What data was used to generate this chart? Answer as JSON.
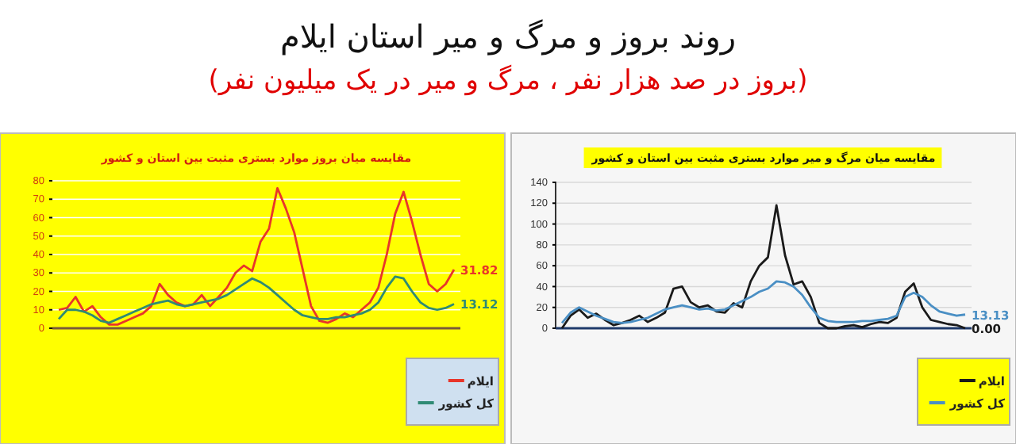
{
  "chart_data": [
    {
      "type": "other",
      "title": "روند بروز و مرگ و میر استان ایلام",
      "subtitle": "(بروز در صد هزار نفر ، مرگ و میر در یک میلیون نفر)"
    },
    {
      "type": "line",
      "title": "مقایسه میان بروز موارد بستری مثبت بین استان و کشور",
      "categories": [
        null,
        null,
        null,
        null,
        null,
        null,
        null,
        null,
        null,
        null,
        null,
        null,
        null,
        null,
        null,
        null,
        null,
        null,
        null,
        null,
        null,
        null,
        null,
        null,
        null,
        null,
        null,
        null,
        null,
        null,
        null,
        null,
        null,
        null,
        null,
        null,
        null,
        null,
        null,
        null,
        null,
        null,
        null,
        null,
        null,
        null,
        null,
        null
      ],
      "ylim": [
        0,
        80
      ],
      "yticks": [
        0,
        10,
        20,
        30,
        40,
        50,
        60,
        70,
        80
      ],
      "grid": "y",
      "tick_labels": "y",
      "legend": "bottom right",
      "series": [
        {
          "name": "ایلام",
          "color": "#e8352a",
          "values": [
            10,
            11,
            17,
            9,
            12,
            6,
            2,
            2,
            4,
            6,
            8,
            12,
            24,
            18,
            14,
            12,
            13,
            18,
            12,
            17,
            22,
            30,
            34,
            31,
            47,
            54,
            76,
            65,
            52,
            32,
            12,
            4,
            3,
            5,
            8,
            6,
            10,
            14,
            22,
            40,
            62,
            74,
            58,
            40,
            24,
            20,
            24,
            31.82
          ],
          "value_labels": [
            null,
            null,
            null,
            null,
            null,
            null,
            null,
            null,
            null,
            null,
            null,
            null,
            null,
            null,
            null,
            null,
            null,
            null,
            null,
            null,
            null,
            null,
            null,
            null,
            null,
            null,
            null,
            null,
            null,
            null,
            null,
            null,
            null,
            null,
            null,
            null,
            null,
            null,
            null,
            null,
            null,
            null,
            null,
            null,
            null,
            null,
            null,
            "31.82"
          ]
        },
        {
          "name": "کل کشور",
          "color": "#2f8a74",
          "values": [
            5,
            10,
            10,
            9,
            7,
            4,
            3,
            5,
            7,
            9,
            11,
            13,
            14,
            15,
            13,
            12,
            13,
            14,
            15,
            16,
            18,
            21,
            24,
            27,
            25,
            22,
            18,
            14,
            10,
            7,
            6,
            5,
            5,
            6,
            6,
            7,
            8,
            10,
            14,
            22,
            28,
            27,
            20,
            14,
            11,
            10,
            11,
            13.12
          ],
          "value_labels": [
            null,
            null,
            null,
            null,
            null,
            null,
            null,
            null,
            null,
            null,
            null,
            null,
            null,
            null,
            null,
            null,
            null,
            null,
            null,
            null,
            null,
            null,
            null,
            null,
            null,
            null,
            null,
            null,
            null,
            null,
            null,
            null,
            null,
            null,
            null,
            null,
            null,
            null,
            null,
            null,
            null,
            null,
            null,
            null,
            null,
            null,
            null,
            "13.12"
          ]
        }
      ]
    },
    {
      "type": "line",
      "title": "مقایسه میان مرگ و میر موارد بستری مثبت بین استان و کشور",
      "categories": [
        null,
        null,
        null,
        null,
        null,
        null,
        null,
        null,
        null,
        null,
        null,
        null,
        null,
        null,
        null,
        null,
        null,
        null,
        null,
        null,
        null,
        null,
        null,
        null,
        null,
        null,
        null,
        null,
        null,
        null,
        null,
        null,
        null,
        null,
        null,
        null,
        null,
        null,
        null,
        null,
        null,
        null,
        null,
        null,
        null,
        null,
        null,
        null
      ],
      "ylim": [
        0,
        140
      ],
      "yticks": [
        0,
        20,
        40,
        60,
        80,
        100,
        120,
        140
      ],
      "grid": "y",
      "tick_labels": "y",
      "legend": "bottom right",
      "series": [
        {
          "name": "ایلام",
          "color": "#1a1a1a",
          "values": [
            0,
            12,
            18,
            10,
            14,
            8,
            3,
            5,
            8,
            12,
            6,
            10,
            15,
            38,
            40,
            25,
            20,
            22,
            16,
            15,
            24,
            20,
            45,
            60,
            68,
            118,
            70,
            42,
            45,
            30,
            5,
            0,
            0,
            2,
            3,
            1,
            4,
            6,
            5,
            10,
            35,
            43,
            20,
            8,
            6,
            4,
            3,
            0
          ],
          "value_labels": [
            null,
            null,
            null,
            null,
            null,
            null,
            null,
            null,
            null,
            null,
            null,
            null,
            null,
            null,
            null,
            null,
            null,
            null,
            null,
            null,
            null,
            null,
            null,
            null,
            null,
            null,
            null,
            null,
            null,
            null,
            null,
            null,
            null,
            null,
            null,
            null,
            null,
            null,
            null,
            null,
            null,
            null,
            null,
            null,
            null,
            null,
            null,
            "0.00"
          ]
        },
        {
          "name": "کل کشور",
          "color": "#4a8fc4",
          "values": [
            5,
            15,
            20,
            16,
            12,
            9,
            6,
            5,
            6,
            8,
            10,
            14,
            18,
            20,
            22,
            20,
            18,
            19,
            17,
            18,
            22,
            26,
            30,
            35,
            38,
            45,
            44,
            40,
            32,
            20,
            10,
            7,
            6,
            6,
            6,
            7,
            7,
            8,
            9,
            12,
            30,
            34,
            30,
            22,
            16,
            14,
            12,
            13.13
          ],
          "value_labels": [
            null,
            null,
            null,
            null,
            null,
            null,
            null,
            null,
            null,
            null,
            null,
            null,
            null,
            null,
            null,
            null,
            null,
            null,
            null,
            null,
            null,
            null,
            null,
            null,
            null,
            null,
            null,
            null,
            null,
            null,
            null,
            null,
            null,
            null,
            null,
            null,
            null,
            null,
            null,
            null,
            null,
            null,
            null,
            null,
            null,
            null,
            null,
            "13.13"
          ]
        }
      ]
    }
  ]
}
